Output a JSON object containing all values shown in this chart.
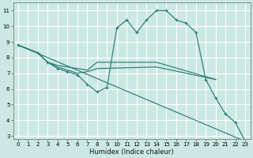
{
  "xlabel": "Humidex (Indice chaleur)",
  "bg_color": "#cbe8e4",
  "grid_color": "#ffffff",
  "line_color": "#2e7d72",
  "series": {
    "line1_x": [
      0,
      2,
      3,
      4,
      5,
      6,
      7,
      8,
      9,
      10,
      11,
      12,
      13,
      14,
      15,
      16,
      17,
      18,
      19,
      20,
      21,
      22,
      23
    ],
    "line1_y": [
      8.8,
      8.3,
      7.7,
      7.3,
      7.1,
      6.9,
      6.3,
      5.8,
      6.1,
      9.9,
      10.4,
      9.6,
      10.4,
      11.0,
      11.0,
      10.4,
      10.2,
      9.6,
      6.6,
      5.4,
      4.4,
      3.85,
      2.65
    ],
    "line2_x": [
      0,
      2,
      3,
      4,
      5,
      6,
      7,
      8,
      14,
      20
    ],
    "line2_y": [
      8.8,
      8.3,
      7.7,
      7.5,
      7.4,
      7.3,
      7.2,
      7.7,
      7.7,
      6.6
    ],
    "line3_x": [
      0,
      2,
      3,
      4,
      5,
      6,
      7,
      8,
      14,
      20
    ],
    "line3_y": [
      8.8,
      8.3,
      7.7,
      7.4,
      7.2,
      7.0,
      7.1,
      7.3,
      7.4,
      6.6
    ],
    "line4_x": [
      0,
      23
    ],
    "line4_y": [
      8.8,
      2.65
    ]
  },
  "ylim": [
    2.8,
    11.5
  ],
  "xlim": [
    -0.5,
    23.5
  ],
  "yticks": [
    3,
    4,
    5,
    6,
    7,
    8,
    9,
    10,
    11
  ],
  "xticks": [
    0,
    1,
    2,
    3,
    4,
    5,
    6,
    7,
    8,
    9,
    10,
    11,
    12,
    13,
    14,
    15,
    16,
    17,
    18,
    19,
    20,
    21,
    22,
    23
  ]
}
